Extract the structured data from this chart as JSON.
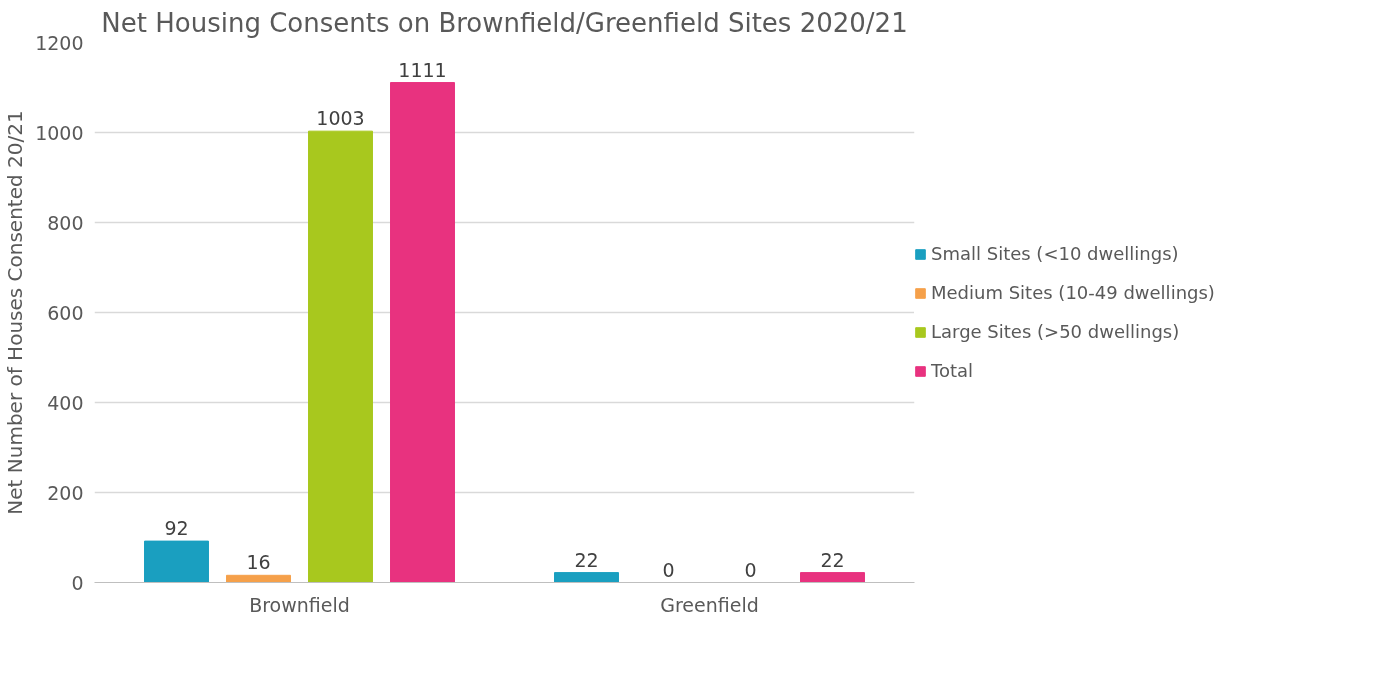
{
  "chart_data": {
    "type": "bar",
    "title": "Net Housing Consents on Brownfield/Greenfield Sites 2020/21",
    "ylabel": "Net Number of Houses Consented 20/21",
    "categories": [
      "Brownfield",
      "Greenfield"
    ],
    "series": [
      {
        "name": "Small Sites (<10 dwellings)",
        "color": "#1a9fc0",
        "values": [
          92,
          22
        ]
      },
      {
        "name": "Medium Sites (10-49 dwellings)",
        "color": "#f5a04a",
        "values": [
          16,
          0
        ]
      },
      {
        "name": "Large Sites (>50 dwellings)",
        "color": "#a8c81e",
        "values": [
          1003,
          0
        ]
      },
      {
        "name": "Total",
        "color": "#e8327f",
        "values": [
          1111,
          22
        ]
      }
    ],
    "ylim": [
      0,
      1200
    ],
    "yticks": [
      0,
      200,
      400,
      600,
      800,
      1000,
      1200
    ],
    "grid": "y",
    "legend": "right",
    "data_labels": true
  }
}
